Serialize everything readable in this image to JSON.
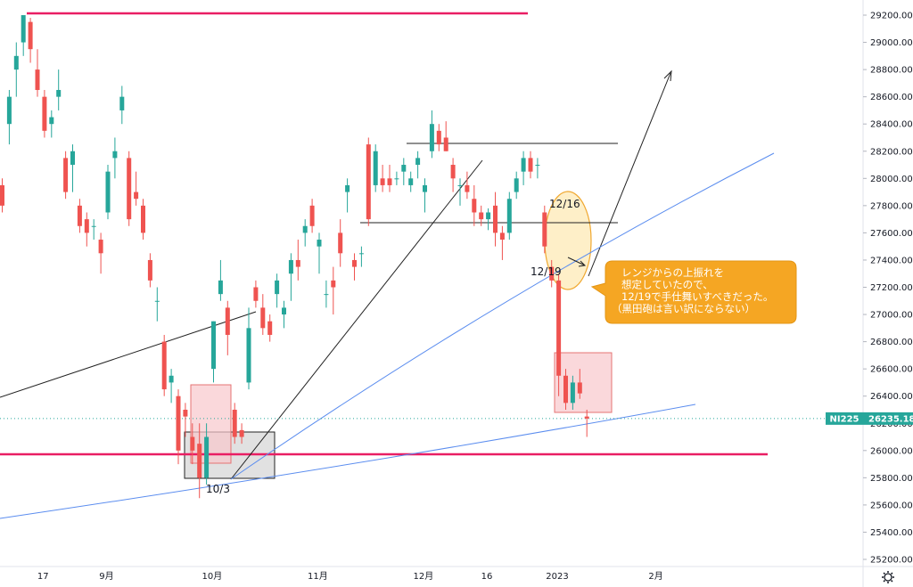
{
  "colors": {
    "up": "#26a69a",
    "down": "#ef5350",
    "support_line": "#e91e63",
    "trend_blue": "#5b8def",
    "trend_black": "#222222",
    "range_line": "#222222",
    "box_gray_fill": "#d9d9d9",
    "box_red_fill": "#f8c8cc",
    "box_red_stroke": "#e57373",
    "ellipse_fill": "#fde9b6",
    "ellipse_stroke": "#f0a830",
    "callout_fill": "#f5a623",
    "last_price_tag": "#26a69a",
    "grid": "#ffffff",
    "axis_text": "#131722"
  },
  "price_tag": {
    "symbol": "NI225",
    "value": "26235.18"
  },
  "annotations": {
    "label_10_3": "10/3",
    "label_12_16": "12/16",
    "label_12_19": "12/19",
    "callout_lines": [
      "レンジからの上振れを",
      "想定していたので、",
      "12/19で手仕舞いすべきだった。",
      "（黒田砲は言い訳にならない）"
    ]
  },
  "chart_data": {
    "type": "candlestick",
    "instrument": "NI225",
    "y_axis": {
      "min": 25150,
      "max": 29300,
      "ticks": [
        25200,
        25400,
        25600,
        25800,
        26000,
        26200,
        26400,
        26600,
        26800,
        27000,
        27200,
        27400,
        27600,
        27800,
        28000,
        28200,
        28400,
        28600,
        28800,
        29000,
        29200
      ],
      "tick_labels": [
        "25200.00",
        "25400.00",
        "25600.00",
        "25800.00",
        "26000.00",
        "26200.00",
        "26400.00",
        "26600.00",
        "26800.00",
        "27000.00",
        "27200.00",
        "27400.00",
        "27600.00",
        "27800.00",
        "28000.00",
        "28200.00",
        "28400.00",
        "28600.00",
        "28800.00",
        "29000.00",
        "29200.00"
      ]
    },
    "x_axis": {
      "labels": [
        {
          "text": "17",
          "index": 2
        },
        {
          "text": "9月",
          "index": 11
        },
        {
          "text": "10月",
          "index": 26
        },
        {
          "text": "11月",
          "index": 41
        },
        {
          "text": "12月",
          "index": 56
        },
        {
          "text": "16",
          "index": 65
        },
        {
          "text": "2023",
          "index": 75
        },
        {
          "text": "2月",
          "index": 89
        }
      ]
    },
    "candles": [
      {
        "o": 27950,
        "h": 28000,
        "l": 27750,
        "c": 27800
      },
      {
        "o": 28400,
        "h": 28650,
        "l": 28250,
        "c": 28600
      },
      {
        "o": 28800,
        "h": 29000,
        "l": 28600,
        "c": 28900
      },
      {
        "o": 29000,
        "h": 29200,
        "l": 28900,
        "c": 29200
      },
      {
        "o": 29150,
        "h": 29180,
        "l": 28850,
        "c": 28950
      },
      {
        "o": 28800,
        "h": 28950,
        "l": 28600,
        "c": 28650
      },
      {
        "o": 28600,
        "h": 28650,
        "l": 28300,
        "c": 28350
      },
      {
        "o": 28400,
        "h": 28500,
        "l": 28300,
        "c": 28450
      },
      {
        "o": 28600,
        "h": 28800,
        "l": 28500,
        "c": 28650
      },
      {
        "o": 28150,
        "h": 28200,
        "l": 27850,
        "c": 27900
      },
      {
        "o": 28100,
        "h": 28250,
        "l": 27900,
        "c": 28200
      },
      {
        "o": 27800,
        "h": 27850,
        "l": 27600,
        "c": 27650
      },
      {
        "o": 27700,
        "h": 27750,
        "l": 27500,
        "c": 27600
      },
      {
        "o": 27650,
        "h": 27700,
        "l": 27550,
        "c": 27650
      },
      {
        "o": 27550,
        "h": 27600,
        "l": 27300,
        "c": 27450
      },
      {
        "o": 27750,
        "h": 28100,
        "l": 27700,
        "c": 28050
      },
      {
        "o": 28150,
        "h": 28300,
        "l": 28000,
        "c": 28200
      },
      {
        "o": 28500,
        "h": 28680,
        "l": 28400,
        "c": 28600
      },
      {
        "o": 28150,
        "h": 28200,
        "l": 27650,
        "c": 27700
      },
      {
        "o": 27900,
        "h": 28050,
        "l": 27800,
        "c": 27850
      },
      {
        "o": 27800,
        "h": 27850,
        "l": 27550,
        "c": 27600
      },
      {
        "o": 27400,
        "h": 27450,
        "l": 27200,
        "c": 27250
      },
      {
        "o": 27100,
        "h": 27200,
        "l": 26950,
        "c": 27100
      },
      {
        "o": 26800,
        "h": 26850,
        "l": 26400,
        "c": 26450
      },
      {
        "o": 26500,
        "h": 26600,
        "l": 26350,
        "c": 26550
      },
      {
        "o": 26400,
        "h": 26450,
        "l": 25900,
        "c": 26000
      },
      {
        "o": 26300,
        "h": 26350,
        "l": 26100,
        "c": 26250
      },
      {
        "o": 26100,
        "h": 26200,
        "l": 25900,
        "c": 26000
      },
      {
        "o": 26050,
        "h": 26200,
        "l": 25650,
        "c": 25800
      },
      {
        "o": 25800,
        "h": 26200,
        "l": 25750,
        "c": 26100
      },
      {
        "o": 26600,
        "h": 26950,
        "l": 26500,
        "c": 26950
      },
      {
        "o": 27150,
        "h": 27400,
        "l": 27100,
        "c": 27250
      },
      {
        "o": 27050,
        "h": 27100,
        "l": 26700,
        "c": 26850
      },
      {
        "o": 26300,
        "h": 26350,
        "l": 26050,
        "c": 26100
      },
      {
        "o": 26150,
        "h": 26200,
        "l": 26050,
        "c": 26100
      },
      {
        "o": 26500,
        "h": 27050,
        "l": 26450,
        "c": 26900
      },
      {
        "o": 27200,
        "h": 27250,
        "l": 27050,
        "c": 27100
      },
      {
        "o": 27050,
        "h": 27150,
        "l": 26850,
        "c": 26900
      },
      {
        "o": 26950,
        "h": 27000,
        "l": 26800,
        "c": 26850
      },
      {
        "o": 27150,
        "h": 27300,
        "l": 27050,
        "c": 27250
      },
      {
        "o": 27000,
        "h": 27100,
        "l": 26900,
        "c": 27050
      },
      {
        "o": 27300,
        "h": 27450,
        "l": 27100,
        "c": 27400
      },
      {
        "o": 27400,
        "h": 27550,
        "l": 27250,
        "c": 27350
      },
      {
        "o": 27600,
        "h": 27700,
        "l": 27500,
        "c": 27650
      },
      {
        "o": 27800,
        "h": 27850,
        "l": 27600,
        "c": 27650
      },
      {
        "o": 27500,
        "h": 27600,
        "l": 27300,
        "c": 27550
      },
      {
        "o": 27150,
        "h": 27250,
        "l": 27050,
        "c": 27150
      },
      {
        "o": 27250,
        "h": 27350,
        "l": 27000,
        "c": 27200
      },
      {
        "o": 27600,
        "h": 27700,
        "l": 27350,
        "c": 27450
      },
      {
        "o": 27900,
        "h": 28000,
        "l": 27750,
        "c": 27950
      },
      {
        "o": 27400,
        "h": 27450,
        "l": 27250,
        "c": 27350
      },
      {
        "o": 27450,
        "h": 27500,
        "l": 27350,
        "c": 27450
      },
      {
        "o": 28250,
        "h": 28300,
        "l": 27650,
        "c": 27700
      },
      {
        "o": 27950,
        "h": 28250,
        "l": 27900,
        "c": 28200
      },
      {
        "o": 28000,
        "h": 28100,
        "l": 27900,
        "c": 27950
      },
      {
        "o": 28000,
        "h": 28100,
        "l": 27900,
        "c": 27950
      },
      {
        "o": 28000,
        "h": 28050,
        "l": 27950,
        "c": 28000
      },
      {
        "o": 28050,
        "h": 28150,
        "l": 27950,
        "c": 28100
      },
      {
        "o": 27950,
        "h": 28050,
        "l": 27900,
        "c": 28000
      },
      {
        "o": 28100,
        "h": 28200,
        "l": 28000,
        "c": 28150
      },
      {
        "o": 27900,
        "h": 28000,
        "l": 27750,
        "c": 27950
      },
      {
        "o": 28200,
        "h": 28500,
        "l": 28150,
        "c": 28400
      },
      {
        "o": 28350,
        "h": 28400,
        "l": 28200,
        "c": 28250
      },
      {
        "o": 28300,
        "h": 28420,
        "l": 28200,
        "c": 28200
      },
      {
        "o": 28100,
        "h": 28150,
        "l": 27900,
        "c": 28000
      },
      {
        "o": 27950,
        "h": 28000,
        "l": 27800,
        "c": 27950
      },
      {
        "o": 27950,
        "h": 28050,
        "l": 27850,
        "c": 27900
      },
      {
        "o": 27850,
        "h": 27950,
        "l": 27650,
        "c": 27750
      },
      {
        "o": 27750,
        "h": 27800,
        "l": 27650,
        "c": 27700
      },
      {
        "o": 27700,
        "h": 27780,
        "l": 27620,
        "c": 27750
      },
      {
        "o": 27800,
        "h": 27900,
        "l": 27500,
        "c": 27600
      },
      {
        "o": 27600,
        "h": 27650,
        "l": 27400,
        "c": 27550
      },
      {
        "o": 27600,
        "h": 27900,
        "l": 27550,
        "c": 27850
      },
      {
        "o": 27900,
        "h": 28050,
        "l": 27850,
        "c": 28000
      },
      {
        "o": 28050,
        "h": 28200,
        "l": 27950,
        "c": 28150
      },
      {
        "o": 28150,
        "h": 28200,
        "l": 28000,
        "c": 28050
      },
      {
        "o": 28100,
        "h": 28150,
        "l": 28000,
        "c": 28100
      },
      {
        "o": 27750,
        "h": 27800,
        "l": 27450,
        "c": 27500
      },
      {
        "o": 27350,
        "h": 27400,
        "l": 27200,
        "c": 27250
      },
      {
        "o": 27250,
        "h": 27300,
        "l": 26400,
        "c": 26550
      },
      {
        "o": 26550,
        "h": 26600,
        "l": 26300,
        "c": 26350
      },
      {
        "o": 26350,
        "h": 26550,
        "l": 26300,
        "c": 26500
      },
      {
        "o": 26500,
        "h": 26600,
        "l": 26380,
        "c": 26420
      },
      {
        "o": 26250,
        "h": 26300,
        "l": 26100,
        "c": 26235.18
      }
    ]
  }
}
